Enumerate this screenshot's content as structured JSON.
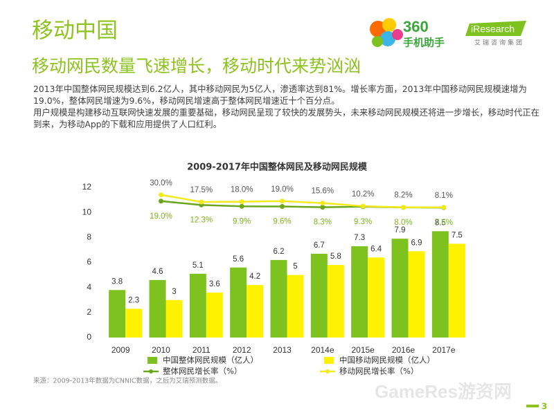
{
  "header": {
    "title": "移动中国",
    "subtitle": "移动网民数量飞速增长，移动时代来势汹汹",
    "logo_text": "360",
    "logo_sub": "手机助手",
    "brand": "iResearch",
    "brand_sub": "艾瑞咨询集团"
  },
  "body": [
    "2013年中国整体网民规模达到6.2亿人，其中移动网民为5亿人，渗透率达到81%。增长率方面，2013年中国移动网民规模速增为19.0%，整体网民增速为9.6%，移动网民增速高于整体网民增速近十个百分点。",
    "用户规模是构建移动互联网快速发展的重要基础，移动网民呈现了较快的发展势头，未来移动网民规模还将进一步增长，移动时代正在到来，为移动App的下载和应用提供了人口红利。"
  ],
  "chart_data": {
    "type": "bar",
    "title": "2009-2017年中国整体网民及移动网民规模",
    "categories": [
      "2009",
      "2010",
      "2011",
      "2012",
      "2013",
      "2014e",
      "2015e",
      "2016e",
      "2017e"
    ],
    "ylim": [
      0,
      12
    ],
    "yticks": [
      0,
      2,
      4,
      6,
      8,
      10,
      12
    ],
    "y2lim": [
      -220,
      43
    ],
    "series": [
      {
        "name": "中国整体网民规模（亿人）",
        "color": "#7dc21e",
        "values": [
          3.8,
          4.6,
          5.1,
          5.6,
          6.2,
          6.7,
          7.3,
          7.9,
          8.5
        ]
      },
      {
        "name": "中国移动网民规模（亿人）",
        "color": "#fff200",
        "values": [
          2.3,
          3.0,
          3.6,
          4.2,
          5.0,
          5.8,
          6.4,
          6.9,
          7.5
        ]
      },
      {
        "name": "整体网民增长率（%）",
        "type": "line",
        "axis": "y2",
        "color": "#6aa61b",
        "values": [
          null,
          19.0,
          12.3,
          9.9,
          9.6,
          8.3,
          9.3,
          8.0,
          7.6
        ],
        "value_labels": [
          null,
          "19.0%",
          "12.3%",
          "9.9%",
          "9.6%",
          "8.3%",
          "9.3%",
          "8.0%",
          "7.6%"
        ]
      },
      {
        "name": "移动网民增长率（%）",
        "type": "line",
        "axis": "y2",
        "color": "#f3ea1a",
        "values": [
          null,
          30.0,
          17.5,
          18.0,
          19.0,
          15.6,
          10.2,
          8.2,
          8.1
        ],
        "value_labels": [
          null,
          "30.0%",
          "17.5%",
          "18.0%",
          "19.0%",
          "15.6%",
          "10.2%",
          "8.2%",
          "8.1%"
        ]
      }
    ]
  },
  "footer": {
    "source": "来源：2009-2013年数据为CNNIC数据，之后为艾瑞预测数据。",
    "page": "3",
    "watermark": "GameRes游资网"
  }
}
